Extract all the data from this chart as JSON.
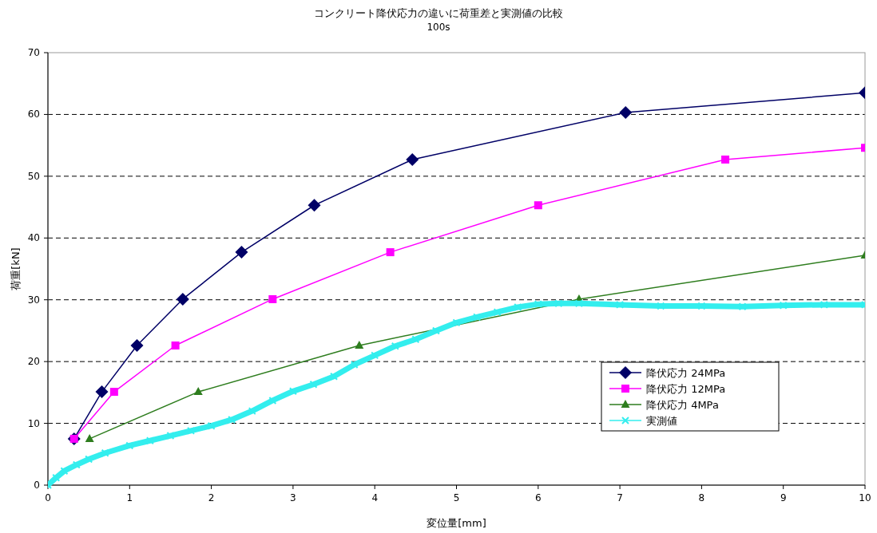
{
  "chart_data": {
    "type": "line",
    "title": "コンクリート降伏応力の違いに荷重差と実測値の比較",
    "subtitle": "100s",
    "xlabel": "変位量[mm]",
    "ylabel": "荷重[kN]",
    "xlim": [
      0,
      10
    ],
    "ylim": [
      0,
      70
    ],
    "xticks": [
      0,
      1,
      2,
      3,
      4,
      5,
      6,
      7,
      8,
      9,
      10
    ],
    "yticks": [
      0,
      10,
      20,
      30,
      40,
      50,
      60,
      70
    ],
    "grid": "y",
    "legend": "bottom right",
    "series": [
      {
        "name": "降伏応力 24MPa",
        "color": "#000066",
        "marker": "diamond",
        "x": [
          0.32,
          0.66,
          1.09,
          1.65,
          2.37,
          3.26,
          4.46,
          7.07,
          10
        ],
        "values": [
          7.5,
          15.1,
          22.6,
          30.1,
          37.7,
          45.3,
          52.7,
          60.3,
          63.5
        ]
      },
      {
        "name": "降伏応力 12MPa",
        "color": "#ff00ff",
        "marker": "square",
        "x": [
          0.32,
          0.81,
          1.56,
          2.75,
          4.19,
          6.0,
          8.29,
          10
        ],
        "values": [
          7.5,
          15.1,
          22.6,
          30.1,
          37.7,
          45.3,
          52.7,
          54.6
        ]
      },
      {
        "name": "降伏応力 4MPa",
        "color": "#2e7d1e",
        "marker": "triangle",
        "x": [
          0.51,
          1.84,
          3.81,
          6.5,
          10
        ],
        "values": [
          7.5,
          15.1,
          22.6,
          30.1,
          37.2
        ]
      },
      {
        "name": "実測値",
        "color": "#33eeee",
        "marker": "cross",
        "x": [
          0,
          0.1,
          0.2,
          0.35,
          0.5,
          0.7,
          1.0,
          1.25,
          1.5,
          1.75,
          2.0,
          2.25,
          2.5,
          2.75,
          3.0,
          3.25,
          3.5,
          3.75,
          4.0,
          4.25,
          4.5,
          4.75,
          5.0,
          5.25,
          5.5,
          5.75,
          6.0,
          6.25,
          6.5,
          7.0,
          7.5,
          8.0,
          8.5,
          9.0,
          9.5,
          10
        ],
        "values": [
          0,
          1.2,
          2.3,
          3.3,
          4.2,
          5.2,
          6.4,
          7.2,
          8.0,
          8.8,
          9.6,
          10.6,
          12.0,
          13.7,
          15.2,
          16.3,
          17.6,
          19.5,
          21.0,
          22.5,
          23.6,
          25.0,
          26.3,
          27.2,
          28.0,
          28.8,
          29.3,
          29.4,
          29.4,
          29.2,
          29.0,
          29.0,
          28.9,
          29.1,
          29.2,
          29.2
        ]
      }
    ]
  }
}
